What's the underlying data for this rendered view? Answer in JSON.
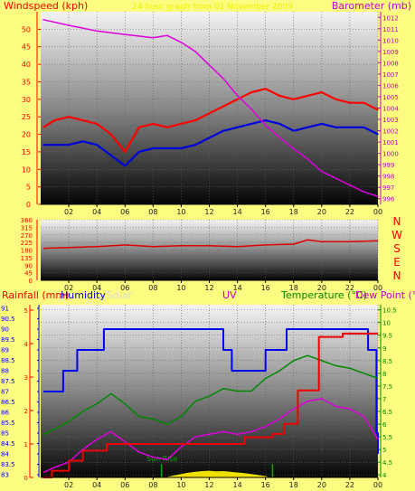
{
  "header": {
    "left": "Windspeed (kph)",
    "center": "24 hour graph from 01 November 2009",
    "right": "Barometer (mb)"
  },
  "chart_data": [
    {
      "type": "line",
      "name": "wind-baro",
      "title": "24 hour graph from 01 November 2009",
      "ylabel": "Windspeed (kph)",
      "y2label": "Barometer (mb)",
      "x_ticks": [
        "02",
        "04",
        "06",
        "08",
        "10",
        "12",
        "14",
        "16",
        "18",
        "20",
        "22",
        "00"
      ],
      "ylim": [
        0,
        55
      ],
      "y_ticks": [
        0,
        5,
        10,
        15,
        20,
        25,
        30,
        35,
        40,
        45,
        50
      ],
      "y2lim": [
        995.5,
        1012.5
      ],
      "y2_ticks": [
        996,
        997,
        998,
        999,
        1000,
        1001,
        1002,
        1003,
        1004,
        1005,
        1006,
        1007,
        1008,
        1009,
        1010,
        1011,
        1012
      ],
      "series": [
        {
          "axis": "left",
          "color": "#ff0000",
          "x": [
            0.2,
            1,
            2,
            3,
            4,
            5,
            6,
            7,
            8,
            9,
            10,
            11,
            12,
            13,
            14,
            15,
            16,
            17,
            18,
            19,
            20,
            21,
            22,
            23,
            24
          ],
          "values": [
            22,
            24,
            25,
            24,
            23,
            20,
            15,
            22,
            23,
            22,
            23,
            24,
            26,
            28,
            30,
            32,
            33,
            31,
            30,
            31,
            32,
            30,
            29,
            29,
            27
          ]
        },
        {
          "axis": "left",
          "color": "#0000dd",
          "x": [
            0.2,
            1,
            2,
            3,
            4,
            5,
            6,
            7,
            8,
            9,
            10,
            11,
            12,
            13,
            14,
            15,
            16,
            17,
            18,
            19,
            20,
            21,
            22,
            23,
            24
          ],
          "values": [
            17,
            17,
            17,
            18,
            17,
            14,
            11,
            15,
            16,
            16,
            16,
            17,
            19,
            21,
            22,
            23,
            24,
            23,
            21,
            22,
            23,
            22,
            22,
            22,
            20
          ]
        },
        {
          "axis": "right",
          "color": "#dd00dd",
          "x": [
            0.2,
            2,
            4,
            6,
            8,
            9,
            10,
            11,
            12,
            13,
            14,
            15,
            16,
            17,
            18,
            19,
            20,
            21,
            22,
            23,
            24
          ],
          "values": [
            1011.8,
            1011.3,
            1010.8,
            1010.5,
            1010.2,
            1010.4,
            1009.8,
            1009.0,
            1007.8,
            1006.6,
            1005.1,
            1003.9,
            1002.5,
            1001.4,
            1000.4,
            999.5,
            998.4,
            997.8,
            997.2,
            996.6,
            996.2
          ]
        }
      ]
    },
    {
      "type": "line",
      "name": "wind-direction",
      "x_ticks": [
        "02",
        "04",
        "06",
        "08",
        "10",
        "12",
        "14",
        "16",
        "18",
        "20",
        "22",
        "00"
      ],
      "ylim": [
        0,
        360
      ],
      "y_ticks": [
        0,
        45,
        90,
        135,
        180,
        225,
        270,
        315,
        360
      ],
      "compass_labels": [
        "N",
        "W",
        "S",
        "E",
        "N"
      ],
      "series": [
        {
          "color": "#dd0000",
          "x": [
            0.2,
            2,
            4,
            6,
            8,
            10,
            12,
            14,
            16,
            18,
            19,
            20,
            22,
            24
          ],
          "values": [
            190,
            195,
            200,
            210,
            200,
            205,
            205,
            200,
            210,
            215,
            240,
            230,
            230,
            235
          ]
        }
      ]
    },
    {
      "type": "line",
      "name": "rain-humidity-temperature",
      "labels": {
        "rainfall": "Rainfall (mm)",
        "humidity": "Humidity",
        "solar": "Solar",
        "uv": "UV",
        "temperature": "Temperature (°C)",
        "dewpoint": "Dew Point (°C)",
        "sun_rise": "Sun Rise"
      },
      "x_ticks": [
        "02",
        "04",
        "06",
        "08",
        "10",
        "12",
        "14",
        "16",
        "18",
        "20",
        "22",
        "00"
      ],
      "rain_ticks": [
        "5",
        "4",
        "3",
        "2",
        "1",
        "0"
      ],
      "rain_lim": [
        0,
        5
      ],
      "humidity_ticks": [
        83,
        83.5,
        84,
        84.5,
        85,
        85.5,
        86,
        86.5,
        87,
        87.5,
        88,
        88.5,
        89,
        89.5,
        90,
        90.5,
        91
      ],
      "humidity_lim": [
        83,
        91
      ],
      "temp_ticks": [
        4,
        4.5,
        5,
        5.5,
        6,
        6.5,
        7,
        7.5,
        8,
        8.5,
        9,
        9.5,
        10,
        10.5
      ],
      "temp_lim": [
        3.9,
        10.7
      ],
      "series": [
        {
          "key": "humidity",
          "axis": "humidity",
          "color": "#0000ee",
          "step": true,
          "x": [
            0.2,
            1.6,
            2.6,
            4.5,
            13,
            13.6,
            16,
            17.5,
            23.3,
            23.9,
            24
          ],
          "values": [
            87,
            88,
            89,
            90,
            89,
            88,
            89,
            90,
            89,
            85,
            84
          ]
        },
        {
          "key": "temperature",
          "axis": "temp",
          "color": "#008800",
          "x": [
            0.2,
            1,
            2,
            3,
            4,
            5,
            6,
            7,
            8,
            9,
            10,
            11,
            12,
            13,
            14,
            15,
            16,
            17,
            18,
            19,
            20,
            21,
            22,
            23,
            24
          ],
          "values": [
            5.6,
            5.8,
            6.1,
            6.5,
            6.8,
            7.2,
            6.8,
            6.3,
            6.2,
            6.0,
            6.3,
            6.9,
            7.1,
            7.4,
            7.3,
            7.3,
            7.8,
            8.1,
            8.5,
            8.7,
            8.5,
            8.3,
            8.2,
            8.0,
            7.8
          ]
        },
        {
          "key": "dewpoint",
          "axis": "temp",
          "color": "#dd00dd",
          "x": [
            0.2,
            1,
            2,
            3,
            4,
            5,
            6,
            7,
            8,
            9,
            10,
            11,
            12,
            13,
            14,
            15,
            16,
            17,
            18,
            19,
            20,
            21,
            22,
            23,
            24
          ],
          "values": [
            4.1,
            4.3,
            4.5,
            5.0,
            5.4,
            5.7,
            5.3,
            4.9,
            4.7,
            4.6,
            5.1,
            5.5,
            5.6,
            5.7,
            5.6,
            5.7,
            5.9,
            6.2,
            6.6,
            6.9,
            7.0,
            6.7,
            6.6,
            6.3,
            5.4
          ]
        },
        {
          "key": "rainfall",
          "axis": "rain",
          "color": "#ee0000",
          "step": true,
          "x": [
            0.2,
            0.8,
            2.0,
            3.0,
            4.7,
            12.5,
            14.5,
            16.5,
            17.3,
            18.3,
            19.8,
            21.5,
            24
          ],
          "values": [
            0,
            0.2,
            0.5,
            0.8,
            1.0,
            1.0,
            1.2,
            1.3,
            1.6,
            2.6,
            4.2,
            4.3,
            4.3
          ]
        },
        {
          "key": "solar",
          "axis": "rain",
          "color": "#f0e000",
          "fill": true,
          "x": [
            8.8,
            9.5,
            10,
            10.5,
            11,
            11.5,
            12,
            12.5,
            13,
            13.5,
            14,
            14.5,
            15,
            15.5,
            16,
            16.3
          ],
          "values": [
            0,
            0.06,
            0.1,
            0.14,
            0.17,
            0.19,
            0.2,
            0.18,
            0.19,
            0.17,
            0.15,
            0.13,
            0.1,
            0.07,
            0.04,
            0
          ]
        }
      ],
      "markers": [
        {
          "color": "#00aa00",
          "x": 8.6,
          "value": 0.4
        },
        {
          "color": "#00aa00",
          "x": 16.5,
          "value": 0.4
        }
      ]
    }
  ]
}
